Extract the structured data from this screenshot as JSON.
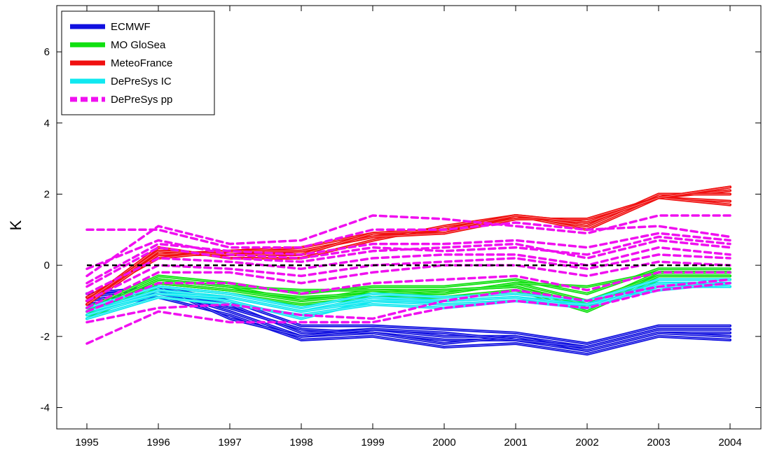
{
  "chart_data": {
    "type": "line",
    "xlabel": "",
    "ylabel": "K",
    "xlim": [
      1995,
      2004
    ],
    "ylim": [
      -4.6,
      7.3
    ],
    "x_ticks": [
      "1995",
      "1996",
      "1997",
      "1998",
      "1999",
      "2000",
      "2001",
      "2002",
      "2003",
      "2004"
    ],
    "y_ticks": [
      {
        "value": -4,
        "label": "-4"
      },
      {
        "value": -2,
        "label": "-2"
      },
      {
        "value": 0,
        "label": "0"
      },
      {
        "value": 2,
        "label": "2"
      },
      {
        "value": 4,
        "label": "4"
      },
      {
        "value": 6,
        "label": "6"
      }
    ],
    "grid": false,
    "legend_position": "top-left",
    "x": [
      1995,
      1996,
      1997,
      1998,
      1999,
      2000,
      2001,
      2002,
      2003,
      2004
    ],
    "reference_line": {
      "y": 0,
      "color": "#000000",
      "style": "dashed"
    },
    "series": [
      {
        "name": "ECMWF",
        "color": "#1010e0",
        "style": "solid",
        "members": [
          [
            -1.0,
            -0.7,
            -1.3,
            -2.0,
            -1.9,
            -2.1,
            -2.1,
            -2.4,
            -1.9,
            -1.9
          ],
          [
            -1.1,
            -0.8,
            -1.1,
            -1.9,
            -1.8,
            -2.0,
            -2.0,
            -2.3,
            -1.8,
            -1.8
          ],
          [
            -0.8,
            -0.6,
            -1.0,
            -1.7,
            -1.7,
            -1.8,
            -1.9,
            -2.2,
            -1.7,
            -1.7
          ],
          [
            -1.2,
            -0.9,
            -1.4,
            -2.1,
            -2.0,
            -2.3,
            -2.2,
            -2.5,
            -2.0,
            -2.1
          ],
          [
            -1.0,
            -0.7,
            -1.2,
            -1.8,
            -1.9,
            -2.2,
            -2.0,
            -2.4,
            -1.9,
            -2.0
          ],
          [
            -0.9,
            -0.6,
            -1.5,
            -2.0,
            -1.8,
            -1.9,
            -2.1,
            -2.3,
            -1.8,
            -1.8
          ]
        ]
      },
      {
        "name": "MO GloSea",
        "color": "#10e010",
        "style": "solid",
        "members": [
          [
            -1.3,
            -0.4,
            -0.6,
            -1.0,
            -0.7,
            -0.7,
            -0.6,
            -1.1,
            -0.2,
            -0.2
          ],
          [
            -1.4,
            -0.5,
            -0.7,
            -0.9,
            -0.8,
            -0.8,
            -0.5,
            -1.0,
            -0.3,
            -0.3
          ],
          [
            -1.2,
            -0.3,
            -0.5,
            -0.8,
            -0.6,
            -0.6,
            -0.4,
            -0.8,
            -0.1,
            -0.1
          ],
          [
            -1.5,
            -0.6,
            -0.8,
            -1.1,
            -0.9,
            -0.9,
            -0.7,
            -1.3,
            -0.4,
            -0.4
          ],
          [
            -1.3,
            -0.4,
            -0.6,
            -0.7,
            -0.7,
            -0.8,
            -0.5,
            -0.6,
            -0.2,
            -0.2
          ],
          [
            -1.4,
            -0.5,
            -0.7,
            -1.0,
            -0.8,
            -0.7,
            -0.6,
            -1.2,
            -0.3,
            -0.3
          ]
        ]
      },
      {
        "name": "MeteoFrance",
        "color": "#f01010",
        "style": "solid",
        "members": [
          [
            -1.0,
            0.3,
            0.3,
            0.4,
            0.8,
            1.0,
            1.4,
            1.2,
            1.9,
            2.1
          ],
          [
            -1.1,
            0.4,
            0.3,
            0.3,
            0.9,
            1.0,
            1.3,
            1.3,
            1.9,
            2.2
          ],
          [
            -0.9,
            0.2,
            0.4,
            0.5,
            0.9,
            0.9,
            1.4,
            1.1,
            2.0,
            2.0
          ],
          [
            -1.0,
            0.5,
            0.2,
            0.2,
            0.7,
            1.1,
            1.4,
            1.0,
            1.9,
            1.8
          ],
          [
            -1.1,
            0.3,
            0.4,
            0.4,
            0.8,
            0.9,
            1.3,
            1.3,
            1.9,
            1.7
          ],
          [
            -1.0,
            0.4,
            0.3,
            0.3,
            0.9,
            1.0,
            1.4,
            1.2,
            1.9,
            2.2
          ]
        ]
      },
      {
        "name": "DePreSys IC",
        "color": "#10e8f0",
        "style": "solid",
        "members": [
          [
            -1.3,
            -0.7,
            -0.9,
            -1.3,
            -0.9,
            -1.0,
            -0.9,
            -1.1,
            -0.5,
            -0.5
          ],
          [
            -1.4,
            -0.8,
            -1.0,
            -1.5,
            -1.0,
            -1.1,
            -1.0,
            -1.2,
            -0.6,
            -0.6
          ],
          [
            -1.2,
            -0.6,
            -0.8,
            -1.2,
            -0.8,
            -0.9,
            -0.8,
            -1.0,
            -0.4,
            -0.4
          ],
          [
            -1.5,
            -0.9,
            -1.1,
            -1.4,
            -1.1,
            -1.2,
            -1.0,
            -1.1,
            -0.7,
            -0.5
          ],
          [
            -1.3,
            -0.8,
            -0.9,
            -1.3,
            -1.0,
            -1.0,
            -0.9,
            -1.2,
            -0.5,
            -0.6
          ]
        ]
      },
      {
        "name": "DePreSys pp",
        "color": "#f010f0",
        "style": "dashed",
        "members": [
          [
            -0.3,
            1.1,
            0.6,
            0.7,
            1.4,
            1.3,
            1.1,
            0.9,
            1.4,
            1.4
          ],
          [
            1.0,
            1.0,
            0.5,
            0.5,
            1.0,
            1.0,
            1.2,
            1.0,
            1.1,
            0.8
          ],
          [
            -0.5,
            0.6,
            0.4,
            0.3,
            0.6,
            0.6,
            0.7,
            0.5,
            0.9,
            0.7
          ],
          [
            -0.6,
            0.5,
            0.2,
            0.1,
            0.4,
            0.5,
            0.6,
            0.2,
            0.7,
            0.5
          ],
          [
            -0.8,
            0.2,
            0.1,
            -0.1,
            0.2,
            0.3,
            0.3,
            0.0,
            0.5,
            0.3
          ],
          [
            -1.0,
            0.0,
            -0.1,
            -0.3,
            0.0,
            0.1,
            0.2,
            -0.1,
            0.3,
            0.2
          ],
          [
            -1.2,
            -0.2,
            -0.2,
            -0.5,
            -0.2,
            0.0,
            0.0,
            -0.3,
            0.1,
            0.0
          ],
          [
            -1.3,
            -0.5,
            -0.5,
            -0.8,
            -0.5,
            -0.4,
            -0.3,
            -0.7,
            -0.2,
            -0.2
          ],
          [
            -1.6,
            -1.2,
            -1.1,
            -1.4,
            -1.5,
            -1.0,
            -0.7,
            -1.0,
            -0.6,
            -0.4
          ],
          [
            -2.2,
            -1.3,
            -1.6,
            -1.6,
            -1.6,
            -1.2,
            -1.0,
            -1.2,
            -0.7,
            -0.5
          ],
          [
            -0.1,
            0.7,
            0.3,
            0.2,
            0.5,
            0.4,
            0.5,
            0.3,
            0.8,
            0.6
          ]
        ]
      }
    ]
  }
}
